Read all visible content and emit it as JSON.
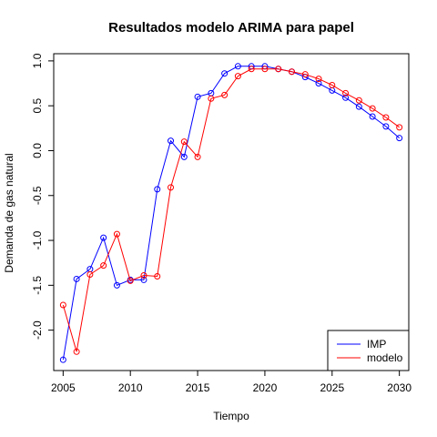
{
  "chart_data": {
    "type": "line",
    "title": "Resultados modelo ARIMA para papel",
    "xlabel": "Tiempo",
    "ylabel": "Demanda de gas natural",
    "xlim": [
      2004.3,
      2030.7
    ],
    "ylim": [
      -2.45,
      1.08
    ],
    "x_ticks": [
      2005,
      2010,
      2015,
      2020,
      2025,
      2030
    ],
    "y_ticks": [
      -2.0,
      -1.5,
      -1.0,
      -0.5,
      0.0,
      0.5,
      1.0
    ],
    "y_tick_labels": [
      "-2.0",
      "-1.5",
      "-1.0",
      "-0.5",
      "0.0",
      "0.5",
      "1.0"
    ],
    "grid": false,
    "legend_position": "bottom-right",
    "x": [
      2005,
      2006,
      2007,
      2008,
      2009,
      2010,
      2011,
      2012,
      2013,
      2014,
      2015,
      2016,
      2017,
      2018,
      2019,
      2020,
      2021,
      2022,
      2023,
      2024,
      2025,
      2026,
      2027,
      2028,
      2029,
      2030
    ],
    "series": [
      {
        "name": "IMP",
        "color": "#0000ff",
        "values": [
          -2.33,
          -1.43,
          -1.32,
          -0.97,
          -1.5,
          -1.44,
          -1.44,
          -0.43,
          0.11,
          -0.07,
          0.6,
          0.64,
          0.86,
          0.94,
          0.94,
          0.94,
          0.91,
          0.88,
          0.82,
          0.75,
          0.67,
          0.59,
          0.49,
          0.38,
          0.27,
          0.14
        ]
      },
      {
        "name": "modelo",
        "color": "#ff0000",
        "values": [
          -1.72,
          -2.24,
          -1.38,
          -1.28,
          -0.93,
          -1.45,
          -1.39,
          -1.4,
          -0.41,
          0.1,
          -0.07,
          0.58,
          0.62,
          0.83,
          0.91,
          0.91,
          0.91,
          0.88,
          0.85,
          0.8,
          0.73,
          0.64,
          0.56,
          0.47,
          0.37,
          0.26
        ]
      }
    ]
  }
}
